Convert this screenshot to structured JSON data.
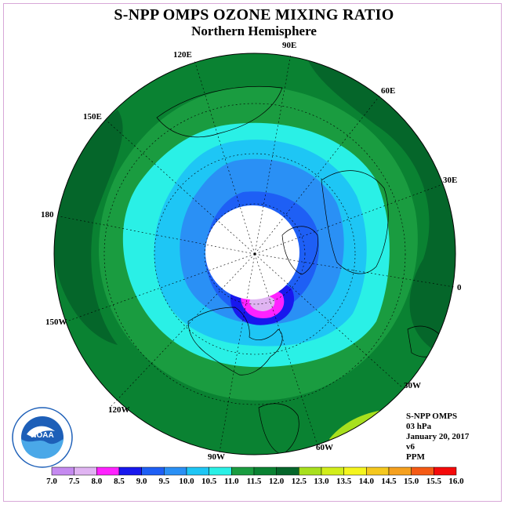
{
  "title": "S-NPP OMPS OZONE MIXING RATIO",
  "subtitle": "Northern Hemisphere",
  "longitude_labels": {
    "e90": "90E",
    "e120": "120E",
    "e60": "60E",
    "e150": "150E",
    "e30": "30E",
    "d180": "180",
    "d0": "0",
    "w150": "150W",
    "w30": "30W",
    "w120": "120W",
    "w60": "60W",
    "w90": "90W"
  },
  "info": {
    "instrument": "S-NPP OMPS",
    "level": "03 hPa",
    "date": "January 20, 2017",
    "version": "v6",
    "units": "PPM"
  },
  "logo": {
    "text": "NOAA",
    "ring_text": "NATIONAL OCEANIC AND ATMOSPHERIC ADMINISTRATION U.S. DEPARTMENT OF COMMERCE"
  },
  "colorbar": {
    "labels": [
      "7.0",
      "7.5",
      "8.0",
      "8.5",
      "9.0",
      "9.5",
      "10.0",
      "10.5",
      "11.0",
      "11.5",
      "12.0",
      "12.5",
      "13.0",
      "13.5",
      "14.0",
      "14.5",
      "15.0",
      "15.5",
      "16.0"
    ],
    "colors": [
      "#c58af0",
      "#e0b4f2",
      "#ff22ff",
      "#1818ee",
      "#1e5ff5",
      "#2a90f5",
      "#1ec6f5",
      "#2af0e6",
      "#1a9c40",
      "#0a8232",
      "#05662a",
      "#a8e01e",
      "#d2ee1a",
      "#f5f51e",
      "#f5c81e",
      "#f5a01e",
      "#f55a14",
      "#f50a0a",
      "#8c4e2e"
    ]
  },
  "map_colors": {
    "outer": "#0a8232",
    "dark": "#05662a",
    "mid": "#1a9c40",
    "cyan": "#2af0e6",
    "lightblue": "#1ec6f5",
    "blue": "#2a90f5",
    "deepblue": "#1e5ff5",
    "navy": "#1818ee",
    "magenta": "#ff22ff",
    "lilac": "#e0b4f2",
    "lime": "#a8e01e",
    "polar_cap": "#ffffff"
  }
}
